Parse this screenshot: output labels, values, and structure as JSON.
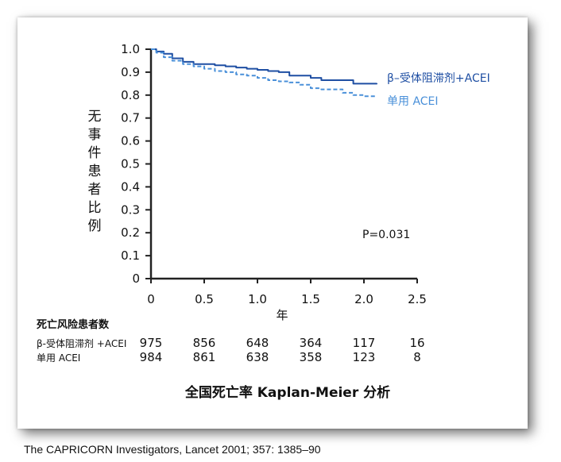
{
  "chart_data": {
    "type": "line",
    "title": "",
    "subtitle": "全国死亡率 Kaplan-Meier 分析",
    "xlabel": "年",
    "ylabel": "无事件患者比例",
    "xlim": [
      0,
      2.5
    ],
    "ylim": [
      0,
      1.0
    ],
    "xticks": [
      "0",
      "0.5",
      "1.0",
      "1.5",
      "2.0",
      "2.5"
    ],
    "yticks": [
      "0",
      "0.1",
      "0.2",
      "0.3",
      "0.4",
      "0.5",
      "0.6",
      "0.7",
      "0.8",
      "0.9",
      "1.0"
    ],
    "grid": false,
    "legend_position": "right",
    "series": [
      {
        "name": "β–受体阻滞剂+ACEI",
        "color": "#1f4fa3",
        "style": "solid",
        "x": [
          0,
          0.05,
          0.12,
          0.2,
          0.3,
          0.4,
          0.5,
          0.6,
          0.7,
          0.8,
          0.9,
          1.0,
          1.1,
          1.2,
          1.3,
          1.4,
          1.5,
          1.6,
          1.7,
          1.8,
          1.9,
          2.0,
          2.12
        ],
        "y": [
          1.0,
          0.99,
          0.98,
          0.96,
          0.945,
          0.935,
          0.935,
          0.93,
          0.925,
          0.92,
          0.915,
          0.91,
          0.905,
          0.9,
          0.885,
          0.885,
          0.875,
          0.865,
          0.865,
          0.865,
          0.85,
          0.85,
          0.852
        ]
      },
      {
        "name": "单用 ACEI",
        "color": "#4a90d9",
        "style": "dashed",
        "x": [
          0,
          0.05,
          0.12,
          0.2,
          0.3,
          0.4,
          0.5,
          0.6,
          0.7,
          0.8,
          0.9,
          1.0,
          1.1,
          1.2,
          1.3,
          1.4,
          1.5,
          1.6,
          1.7,
          1.8,
          1.9,
          2.0,
          2.12
        ],
        "y": [
          1.0,
          0.985,
          0.965,
          0.95,
          0.935,
          0.925,
          0.915,
          0.905,
          0.9,
          0.89,
          0.885,
          0.875,
          0.865,
          0.86,
          0.855,
          0.845,
          0.83,
          0.825,
          0.825,
          0.81,
          0.8,
          0.795,
          0.795
        ]
      }
    ],
    "annotation": "P=0.031",
    "risk_table": {
      "title": "死亡风险患者数",
      "rows": [
        {
          "label": "β-受体阻滞剂 +ACEI",
          "values": [
            "975",
            "856",
            "648",
            "364",
            "117",
            "16"
          ]
        },
        {
          "label": "单用 ACEI",
          "values": [
            "984",
            "861",
            "638",
            "358",
            "123",
            "8"
          ]
        }
      ]
    }
  },
  "citation": "The CAPRICORN Investigators, Lancet 2001; 357: 1385–90"
}
